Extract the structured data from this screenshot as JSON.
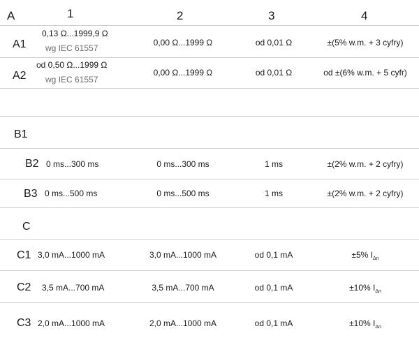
{
  "header": {
    "a": "A",
    "c1": "1",
    "c2": "2",
    "c3": "3",
    "c4": "4"
  },
  "rows": {
    "a1": {
      "label": "A1",
      "col1": "0,13 Ω...1999,9 Ω",
      "col1_sub": "wg IEC 61557",
      "col2": "0,00 Ω...1999 Ω",
      "col3": "od 0,01 Ω",
      "col4": "±(5% w.m. + 3 cyfry)"
    },
    "a2": {
      "label": "A2",
      "col1": "od 0,50 Ω...1999 Ω",
      "col1_sub": "wg IEC 61557",
      "col2": "0,00 Ω...1999 Ω",
      "col3": "od 0,01 Ω",
      "col4": "od ±(6% w.m. + 5 cyfr)"
    },
    "b1": {
      "label": "B1"
    },
    "b2": {
      "label": "B2",
      "col1": "0 ms...300 ms",
      "col2": "0 ms...300 ms",
      "col3": "1 ms",
      "col4": "±(2% w.m. + 2 cyfry)"
    },
    "b3": {
      "label": "B3",
      "col1": "0 ms...500 ms",
      "col2": "0 ms...500 ms",
      "col3": "1 ms",
      "col4": "±(2% w.m. + 2 cyfry)"
    },
    "c": {
      "label": "C"
    },
    "c1": {
      "label": "C1",
      "col1": "3,0 mA...1000 mA",
      "col2": "3,0 mA...1000 mA",
      "col3": "od 0,1 mA",
      "col4": "±5% I",
      "col4_sub": "Δn"
    },
    "c2": {
      "label": "C2",
      "col1": "3,5 mA...700 mA",
      "col2": "3,5 mA...700 mA",
      "col3": "od 0,1 mA",
      "col4": "±10% I",
      "col4_sub": "Δn"
    },
    "c3": {
      "label": "C3",
      "col1": "2,0 mA...1000 mA",
      "col2": "2,0 mA...1000 mA",
      "col3": "od 0,1 mA",
      "col4": "±10% I",
      "col4_sub": "Δn"
    }
  }
}
